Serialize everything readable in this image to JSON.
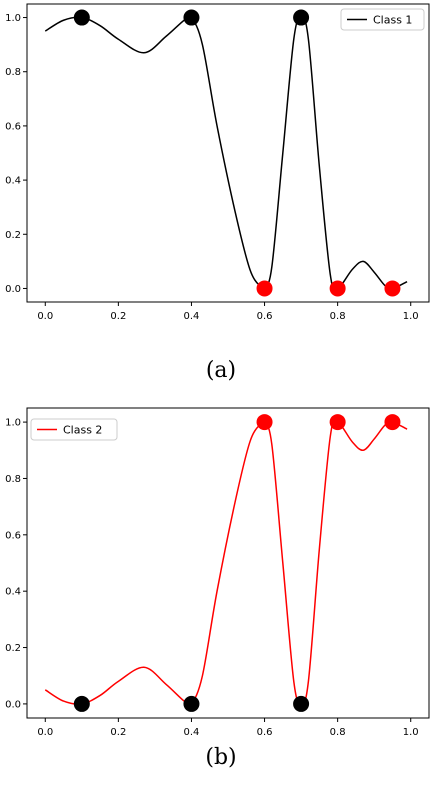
{
  "colors": {
    "class1": "#000000",
    "class2": "#ff0000",
    "point_black": "#000000",
    "point_red": "#ff0000"
  },
  "chart_data": [
    {
      "type": "line",
      "caption": "(a)",
      "xlim": [
        -0.05,
        1.05
      ],
      "ylim": [
        -0.05,
        1.05
      ],
      "xticks": [
        0.0,
        0.2,
        0.4,
        0.6,
        0.8,
        1.0
      ],
      "xtick_labels": [
        "0.0",
        "0.2",
        "0.4",
        "0.6",
        "0.8",
        "1.0"
      ],
      "yticks": [
        0.0,
        0.2,
        0.4,
        0.6,
        0.8,
        1.0
      ],
      "ytick_labels": [
        "0.0",
        "0.2",
        "0.4",
        "0.6",
        "0.8",
        "1.0"
      ],
      "legend": {
        "position": "upper right",
        "entries": [
          "Class 1"
        ]
      },
      "series": [
        {
          "name": "Class 1",
          "color": "#000000",
          "x": [
            0.0,
            0.05,
            0.1,
            0.15,
            0.2,
            0.27,
            0.33,
            0.38,
            0.4,
            0.43,
            0.47,
            0.52,
            0.56,
            0.59,
            0.6,
            0.62,
            0.65,
            0.68,
            0.7,
            0.72,
            0.75,
            0.78,
            0.8,
            0.84,
            0.87,
            0.9,
            0.93,
            0.95,
            0.99
          ],
          "y": [
            0.95,
            0.99,
            1.0,
            0.97,
            0.92,
            0.87,
            0.93,
            0.99,
            1.0,
            0.9,
            0.6,
            0.28,
            0.07,
            0.005,
            0.0,
            0.08,
            0.5,
            0.92,
            1.0,
            0.92,
            0.45,
            0.05,
            0.0,
            0.07,
            0.1,
            0.06,
            0.01,
            0.0,
            0.025
          ]
        }
      ],
      "points": [
        {
          "x": 0.1,
          "y": 1.0,
          "color": "#000000"
        },
        {
          "x": 0.4,
          "y": 1.0,
          "color": "#000000"
        },
        {
          "x": 0.7,
          "y": 1.0,
          "color": "#000000"
        },
        {
          "x": 0.6,
          "y": 0.0,
          "color": "#ff0000"
        },
        {
          "x": 0.8,
          "y": 0.0,
          "color": "#ff0000"
        },
        {
          "x": 0.95,
          "y": 0.0,
          "color": "#ff0000"
        }
      ]
    },
    {
      "type": "line",
      "caption": "(b)",
      "xlim": [
        -0.05,
        1.05
      ],
      "ylim": [
        -0.05,
        1.05
      ],
      "xticks": [
        0.0,
        0.2,
        0.4,
        0.6,
        0.8,
        1.0
      ],
      "xtick_labels": [
        "0.0",
        "0.2",
        "0.4",
        "0.6",
        "0.8",
        "1.0"
      ],
      "yticks": [
        0.0,
        0.2,
        0.4,
        0.6,
        0.8,
        1.0
      ],
      "ytick_labels": [
        "0.0",
        "0.2",
        "0.4",
        "0.6",
        "0.8",
        "1.0"
      ],
      "legend": {
        "position": "upper left",
        "entries": [
          "Class 2"
        ]
      },
      "series": [
        {
          "name": "Class 2",
          "color": "#ff0000",
          "x": [
            0.0,
            0.05,
            0.1,
            0.15,
            0.2,
            0.27,
            0.33,
            0.38,
            0.4,
            0.43,
            0.47,
            0.52,
            0.56,
            0.59,
            0.6,
            0.62,
            0.65,
            0.68,
            0.7,
            0.72,
            0.75,
            0.78,
            0.8,
            0.84,
            0.87,
            0.9,
            0.93,
            0.95,
            0.99
          ],
          "y": [
            0.05,
            0.01,
            0.0,
            0.03,
            0.08,
            0.13,
            0.07,
            0.01,
            0.0,
            0.1,
            0.4,
            0.72,
            0.93,
            0.995,
            1.0,
            0.92,
            0.5,
            0.08,
            0.0,
            0.08,
            0.55,
            0.95,
            1.0,
            0.93,
            0.9,
            0.94,
            0.99,
            1.0,
            0.975
          ]
        }
      ],
      "points": [
        {
          "x": 0.1,
          "y": 0.0,
          "color": "#000000"
        },
        {
          "x": 0.4,
          "y": 0.0,
          "color": "#000000"
        },
        {
          "x": 0.7,
          "y": 0.0,
          "color": "#000000"
        },
        {
          "x": 0.6,
          "y": 1.0,
          "color": "#ff0000"
        },
        {
          "x": 0.8,
          "y": 1.0,
          "color": "#ff0000"
        },
        {
          "x": 0.95,
          "y": 1.0,
          "color": "#ff0000"
        }
      ]
    }
  ]
}
